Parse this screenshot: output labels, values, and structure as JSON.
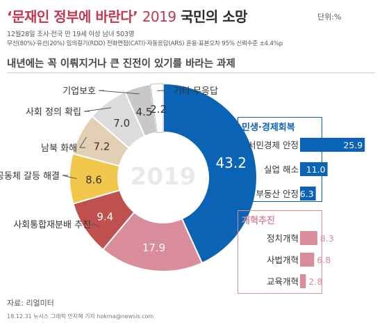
{
  "header": {
    "title_quote": "‘문재인 정부에 바란다’",
    "title_year": "2019",
    "title_rest": "국민의 소망",
    "unit": "단위:%",
    "survey_line1": "12월28일 조사·전국 만 19세 이상 남녀 503명",
    "survey_line2": "무선(80%)·유선(20%) 임의걸기(RDD) 전화면접(CATI)·자동응답(ARS) 혼용·표본오차 95% 신뢰수준 ±4.4%p",
    "question": "내년에는 꼭 이뤄지거나 큰 진전이 있기를 바라는 과제"
  },
  "footer": {
    "source": "자료: 리얼미터",
    "credit": "18.12.31 뉴시스 그래픽 안지혜 기자 hokma@newsis.com"
  },
  "colors": {
    "title_red": "#c0394e",
    "blue": "#0b63b6",
    "pink": "#d98c9a",
    "red_slice": "#c0504d",
    "yellow": "#f0c74b",
    "beige": "#e3cfb4",
    "light_gray": "#dcdcdc"
  },
  "chart_data": [
    {
      "type": "pie",
      "variant": "donut",
      "center_text": "2019",
      "slices": [
        {
          "label": "민생·경제회복",
          "value": 43.2,
          "color": "#0b63b6"
        },
        {
          "label": "개혁추진",
          "value": 17.9,
          "color": "#d98c9a"
        },
        {
          "label": "사회통합재분배 추진",
          "value": 9.4,
          "color": "#c0504d"
        },
        {
          "label": "공동체 갈등 해결",
          "value": 8.6,
          "color": "#f0c74b"
        },
        {
          "label": "남북 화해",
          "value": 7.2,
          "color": "#e3cfb4"
        },
        {
          "label": "사회 정의 확립",
          "value": 7.0,
          "color": "#dcdcdc"
        },
        {
          "label": "기업보호",
          "value": 4.5,
          "color": "#c8c8c8"
        },
        {
          "label": "기타·무응답",
          "value": 2.2,
          "color": "#ffffff"
        }
      ]
    },
    {
      "type": "bar",
      "title": "민생·경제회복",
      "categories": [
        "서민경제 안정",
        "실업 해소",
        "부동산 안정"
      ],
      "values": [
        25.9,
        11.0,
        6.3
      ],
      "labels": [
        "25.9",
        "11.0",
        "6.3"
      ],
      "color": "#0b63b6"
    },
    {
      "type": "bar",
      "title": "개혁추진",
      "categories": [
        "정치개혁",
        "사법개혁",
        "교육개혁"
      ],
      "values": [
        8.3,
        6.8,
        2.8
      ],
      "labels": [
        "8.3",
        "6.8",
        "2.8"
      ],
      "color": "#d98c9a"
    }
  ]
}
